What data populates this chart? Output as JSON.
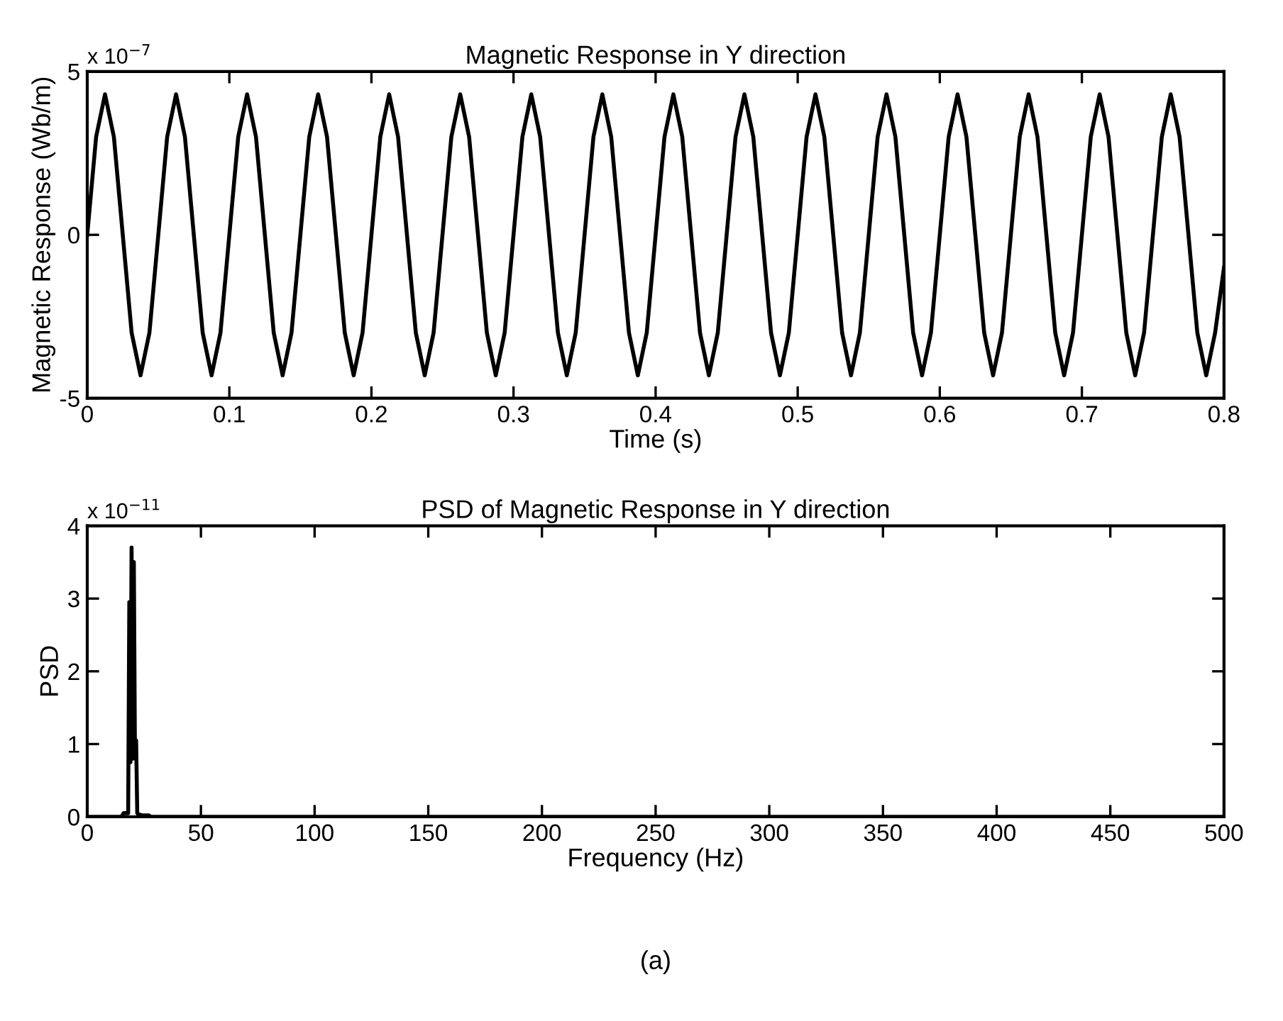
{
  "chart_data": [
    {
      "type": "line",
      "title": "Magnetic Response in Y direction",
      "xlabel": "Time (s)",
      "ylabel": "Magnetic Response (Wb/m)",
      "annotations": [
        "x 10$^{−7}$"
      ],
      "x": [
        0,
        0.00625,
        0.0125,
        0.01875,
        0.025,
        0.03125,
        0.0375,
        0.04375,
        0.05,
        0.05625,
        0.0625,
        0.06875,
        0.075,
        0.08125,
        0.0875,
        0.09375,
        0.1,
        0.10625,
        0.1125,
        0.11875,
        0.125,
        0.13125,
        0.1375,
        0.14375,
        0.15,
        0.15625,
        0.1625,
        0.16875,
        0.175,
        0.18125,
        0.1875,
        0.19375,
        0.2,
        0.20625,
        0.2125,
        0.21875,
        0.225,
        0.23125,
        0.2375,
        0.24375,
        0.25,
        0.25625,
        0.2625,
        0.26875,
        0.275,
        0.28125,
        0.2875,
        0.29375,
        0.3,
        0.30625,
        0.3125,
        0.31875,
        0.325,
        0.33125,
        0.3375,
        0.34375,
        0.35,
        0.35625,
        0.3625,
        0.36875,
        0.375,
        0.38125,
        0.3875,
        0.39375,
        0.4,
        0.40625,
        0.4125,
        0.41875,
        0.425,
        0.43125,
        0.4375,
        0.44375,
        0.45,
        0.45625,
        0.4625,
        0.46875,
        0.475,
        0.48125,
        0.4875,
        0.49375,
        0.5,
        0.50625,
        0.5125,
        0.51875,
        0.525,
        0.53125,
        0.5375,
        0.54375,
        0.55,
        0.55625,
        0.5625,
        0.56875,
        0.575,
        0.58125,
        0.5875,
        0.59375,
        0.6,
        0.60625,
        0.6125,
        0.61875,
        0.625,
        0.63125,
        0.6375,
        0.64375,
        0.65,
        0.65625,
        0.6625,
        0.66875,
        0.675,
        0.68125,
        0.6875,
        0.69375,
        0.7,
        0.70625,
        0.7125,
        0.71875,
        0.725,
        0.73125,
        0.7375,
        0.74375,
        0.75,
        0.75625,
        0.7625,
        0.76875,
        0.775,
        0.78125,
        0.7875,
        0.79375,
        0.8
      ],
      "series": [
        {
          "color": "#000000",
          "values": [
            0,
            3.0,
            4.3,
            3.0,
            0,
            -3.0,
            -4.3,
            -3.0,
            0,
            3.0,
            4.3,
            3.0,
            0,
            -3.0,
            -4.3,
            -3.0,
            0,
            3.0,
            4.3,
            3.0,
            0,
            -3.0,
            -4.3,
            -3.0,
            0,
            3.0,
            4.3,
            3.0,
            0,
            -3.0,
            -4.3,
            -3.0,
            0,
            3.0,
            4.3,
            3.0,
            0,
            -3.0,
            -4.3,
            -3.0,
            0,
            3.0,
            4.3,
            3.0,
            0,
            -3.0,
            -4.3,
            -3.0,
            0,
            3.0,
            4.3,
            3.0,
            0,
            -3.0,
            -4.3,
            -3.0,
            0,
            3.0,
            4.3,
            3.0,
            0,
            -3.0,
            -4.3,
            -3.0,
            0,
            3.0,
            4.3,
            3.0,
            0,
            -3.0,
            -4.3,
            -3.0,
            0,
            3.0,
            4.3,
            3.0,
            0,
            -3.0,
            -4.3,
            -3.0,
            0,
            3.0,
            4.3,
            3.0,
            0,
            -3.0,
            -4.3,
            -3.0,
            0,
            3.0,
            4.3,
            3.0,
            0,
            -3.0,
            -4.3,
            -3.0,
            0,
            3.0,
            4.3,
            3.0,
            0,
            -3.0,
            -4.3,
            -3.0,
            0,
            3.0,
            4.3,
            3.0,
            0,
            -3.0,
            -4.3,
            -3.0,
            0,
            3.0,
            4.3,
            3.0,
            0,
            -3.0,
            -4.3,
            -3.0,
            0,
            3.0,
            4.3,
            3.0,
            0,
            -3.0,
            -4.3,
            -3.0,
            -1
          ]
        }
      ],
      "xlim": [
        0,
        0.8
      ],
      "xticks": [
        0,
        0.1,
        0.2,
        0.3,
        0.4,
        0.5,
        0.6,
        0.7,
        0.8
      ],
      "ylim": [
        -5,
        5
      ],
      "yticks": [
        -5,
        0,
        5
      ],
      "grid": false,
      "legend": false,
      "line_style": "solid",
      "marker": "none"
    },
    {
      "type": "line",
      "title": "PSD of Magnetic Response in Y direction",
      "xlabel": "Frequency (Hz)",
      "ylabel": "PSD",
      "annotations": [
        "x 10$^{−11}$",
        "(a)"
      ],
      "x": [
        0,
        15,
        16,
        17,
        18,
        18.5,
        19,
        19.5,
        20,
        20.5,
        21,
        21.5,
        22,
        22.5,
        23,
        24,
        25,
        27,
        28,
        30,
        500
      ],
      "series": [
        {
          "color": "#000000",
          "values": [
            0,
            0,
            0.05,
            0.05,
            0.05,
            2.95,
            0.75,
            3.7,
            0.8,
            3.5,
            0.8,
            1.05,
            0.05,
            0.03,
            0.03,
            0.02,
            0.02,
            0.02,
            0,
            0,
            0
          ]
        }
      ],
      "xlim": [
        0,
        500
      ],
      "xticks": [
        0,
        50,
        100,
        150,
        200,
        250,
        300,
        350,
        400,
        450,
        500
      ],
      "ylim": [
        0,
        4
      ],
      "yticks": [
        0,
        1,
        2,
        3,
        4
      ],
      "grid": false,
      "legend": false,
      "line_style": "solid",
      "marker": "none"
    }
  ]
}
